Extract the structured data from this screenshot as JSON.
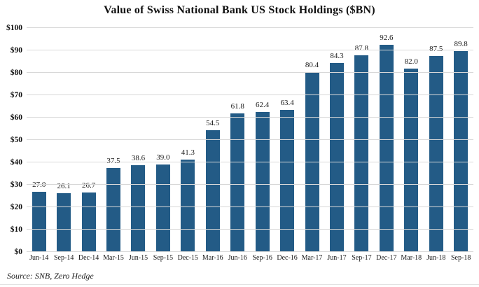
{
  "title": "Value of Swiss National Bank US Stock Holdings ($BN)",
  "source": "Source: SNB, Zero Hedge",
  "colors": {
    "bar": "#235b86",
    "gridline": "#d8d8d8",
    "text": "#111111"
  },
  "chart_data": {
    "type": "bar",
    "title": "Value of Swiss National Bank US Stock Holdings ($BN)",
    "categories": [
      "Jun-14",
      "Sep-14",
      "Dec-14",
      "Mar-15",
      "Jun-15",
      "Sep-15",
      "Dec-15",
      "Mar-16",
      "Jun-16",
      "Sep-16",
      "Dec-16",
      "Mar-17",
      "Jun-17",
      "Sep-17",
      "Dec-17",
      "Mar-18",
      "Jun-18",
      "Sep-18"
    ],
    "values": [
      27.0,
      26.1,
      26.7,
      37.5,
      38.6,
      39.0,
      41.3,
      54.5,
      61.8,
      62.4,
      63.4,
      80.4,
      84.3,
      87.8,
      92.6,
      82.0,
      87.5,
      89.8
    ],
    "value_labels": [
      "27.0",
      "26.1",
      "26.7",
      "37.5",
      "38.6",
      "39.0",
      "41.3",
      "54.5",
      "61.8",
      "62.4",
      "63.4",
      "80.4",
      "84.3",
      "87.8",
      "92.6",
      "82.0",
      "87.5",
      "89.8"
    ],
    "xlabel": "",
    "ylabel": "",
    "ylim": [
      0,
      100
    ],
    "y_tick_step": 10,
    "y_tick_labels": [
      "$0",
      "$10",
      "$20",
      "$30",
      "$40",
      "$50",
      "$60",
      "$70",
      "$80",
      "$90",
      "$100"
    ],
    "grid": true,
    "legend_position": "none",
    "source_note": "Source: SNB, Zero Hedge"
  }
}
